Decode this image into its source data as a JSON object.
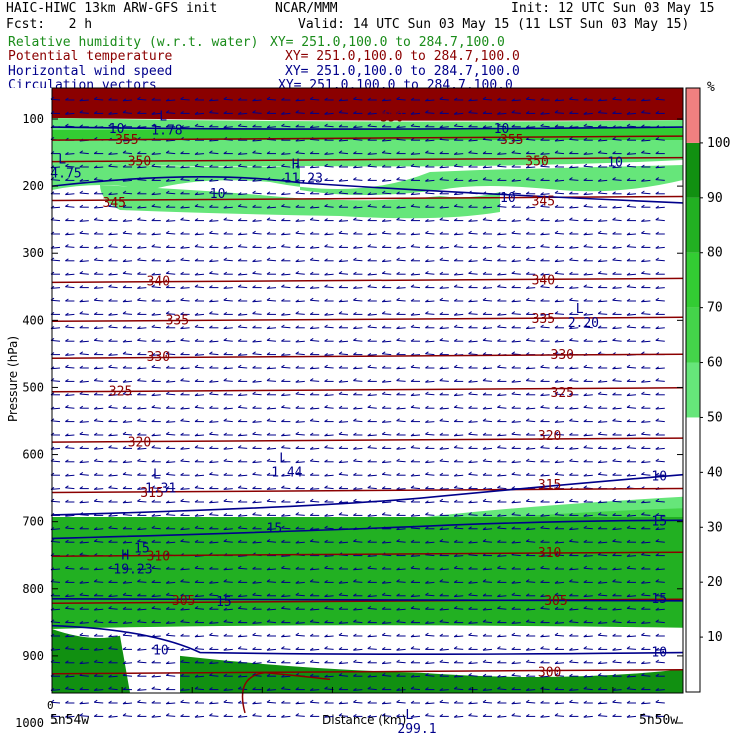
{
  "header": {
    "title_left": "HAIC-HIWC 13km ARW-GFS init",
    "center_org": "NCAR/MMM",
    "init": "Init: 12 UTC Sun 03 May 15",
    "fcst": "Fcst:   2 h",
    "valid": "Valid: 14 UTC Sun 03 May 15 (11 LST Sun 03 May 15)",
    "fields": [
      {
        "name": "Relative humidity (w.r.t. water)",
        "xy": "XY= 251.0,100.0 to 284.7,100.0",
        "color": "#1a8c1a"
      },
      {
        "name": "Potential temperature",
        "xy": "XY= 251.0,100.0 to 284.7,100.0",
        "color": "#8b0000"
      },
      {
        "name": "Horizontal wind speed",
        "xy": "XY= 251.0,100.0 to 284.7,100.0",
        "color": "#00008b"
      },
      {
        "name": "Circulation vectors",
        "xy": "XY= 251.0,100.0 to 284.7,100.0",
        "color": "#00008b"
      }
    ]
  },
  "colors": {
    "rh_50": "#66e67a",
    "rh_60": "#44d44a",
    "rh_70": "#33cc33",
    "rh_80": "#22b022",
    "rh_90": "#119011",
    "rh_100": "#8b0000",
    "rh_over": "#f08080",
    "theta": "#8b0000",
    "wind": "#00008b",
    "vector": "#00008b"
  },
  "chart_data": {
    "type": "cross-section",
    "xlabel": "Distance (km)",
    "ylabel": "Pressure (hPa)",
    "x_start_tick": "0",
    "x_start_label": "5n54w",
    "x_end_label": "5n50w",
    "pressure_ticks": [
      100,
      200,
      300,
      400,
      500,
      600,
      700,
      800,
      900,
      1000
    ],
    "colorbar": {
      "unit": "%",
      "ticks": [
        10,
        20,
        30,
        40,
        50,
        60,
        70,
        80,
        90,
        100
      ],
      "bands": [
        {
          "from": 50,
          "to": 60,
          "color": "#66e67a"
        },
        {
          "from": 60,
          "to": 70,
          "color": "#44d44a"
        },
        {
          "from": 70,
          "to": 80,
          "color": "#33cc33"
        },
        {
          "from": 80,
          "to": 90,
          "color": "#22b022"
        },
        {
          "from": 90,
          "to": 100,
          "color": "#119011"
        },
        {
          "from": 100,
          "to": 110,
          "color": "#f08080"
        }
      ]
    },
    "theta_contours": [
      {
        "label": "355",
        "p": 130
      },
      {
        "label": "350",
        "p": 162
      },
      {
        "label": "345",
        "p": 220
      },
      {
        "label": "340",
        "p": 342
      },
      {
        "label": "335",
        "p": 400
      },
      {
        "label": "330",
        "p": 455
      },
      {
        "label": "325",
        "p": 505
      },
      {
        "label": "320",
        "p": 580
      },
      {
        "label": "315",
        "p": 655
      },
      {
        "label": "310",
        "p": 750
      },
      {
        "label": "305",
        "p": 820
      },
      {
        "label": "300",
        "p": 925
      }
    ],
    "theta_labels": [
      {
        "text": "355",
        "x": 0.1,
        "p": 131
      },
      {
        "text": "355",
        "x": 0.71,
        "p": 131
      },
      {
        "text": "350",
        "x": 0.12,
        "p": 163
      },
      {
        "text": "350",
        "x": 0.75,
        "p": 163
      },
      {
        "text": "350",
        "x": 0.52,
        "p": 98
      },
      {
        "text": "345",
        "x": 0.08,
        "p": 225
      },
      {
        "text": "345",
        "x": 0.76,
        "p": 223
      },
      {
        "text": "340",
        "x": 0.15,
        "p": 342
      },
      {
        "text": "340",
        "x": 0.76,
        "p": 341
      },
      {
        "text": "335",
        "x": 0.18,
        "p": 400
      },
      {
        "text": "335",
        "x": 0.76,
        "p": 398
      },
      {
        "text": "330",
        "x": 0.15,
        "p": 455
      },
      {
        "text": "330",
        "x": 0.79,
        "p": 452
      },
      {
        "text": "325",
        "x": 0.09,
        "p": 506
      },
      {
        "text": "325",
        "x": 0.79,
        "p": 508
      },
      {
        "text": "320",
        "x": 0.12,
        "p": 582
      },
      {
        "text": "320",
        "x": 0.77,
        "p": 572
      },
      {
        "text": "315",
        "x": 0.14,
        "p": 657
      },
      {
        "text": "315",
        "x": 0.77,
        "p": 645
      },
      {
        "text": "310",
        "x": 0.15,
        "p": 752
      },
      {
        "text": "310",
        "x": 0.77,
        "p": 747
      },
      {
        "text": "305",
        "x": 0.19,
        "p": 818
      },
      {
        "text": "305",
        "x": 0.78,
        "p": 818
      },
      {
        "text": "300",
        "x": 0.77,
        "p": 925
      },
      {
        "text": "10",
        "x": 0.09,
        "p": 115
      },
      {
        "text": "10",
        "x": 0.7,
        "p": 115
      },
      {
        "text": "10",
        "x": 0.25,
        "p": 212
      },
      {
        "text": "10",
        "x": 0.71,
        "p": 218
      },
      {
        "text": "10",
        "x": 0.88,
        "p": 165
      },
      {
        "text": "10",
        "x": 0.95,
        "p": 633
      },
      {
        "text": "10",
        "x": 0.16,
        "p": 892
      },
      {
        "text": "10",
        "x": 0.95,
        "p": 895
      },
      {
        "text": "15",
        "x": 0.34,
        "p": 710
      },
      {
        "text": "15",
        "x": 0.95,
        "p": 700
      },
      {
        "text": "15",
        "x": 0.13,
        "p": 740
      },
      {
        "text": "15",
        "x": 0.26,
        "p": 820
      },
      {
        "text": "15",
        "x": 0.95,
        "p": 815
      }
    ],
    "extrema": [
      {
        "type": "L",
        "value": "1.78",
        "x": 0.17,
        "p": 108
      },
      {
        "type": "L",
        "value": "4.75",
        "x": 0.01,
        "p": 172
      },
      {
        "type": "H",
        "value": "11.23",
        "x": 0.38,
        "p": 180
      },
      {
        "type": "L",
        "value": "2.20",
        "x": 0.83,
        "p": 395
      },
      {
        "type": "L",
        "value": "1.44",
        "x": 0.36,
        "p": 618
      },
      {
        "type": "L",
        "value": "1.31",
        "x": 0.16,
        "p": 642
      },
      {
        "type": "H",
        "value": "19.23",
        "x": 0.11,
        "p": 762
      },
      {
        "type": "L",
        "value": "299.1",
        "x": 0.56,
        "p": 1000
      }
    ]
  }
}
